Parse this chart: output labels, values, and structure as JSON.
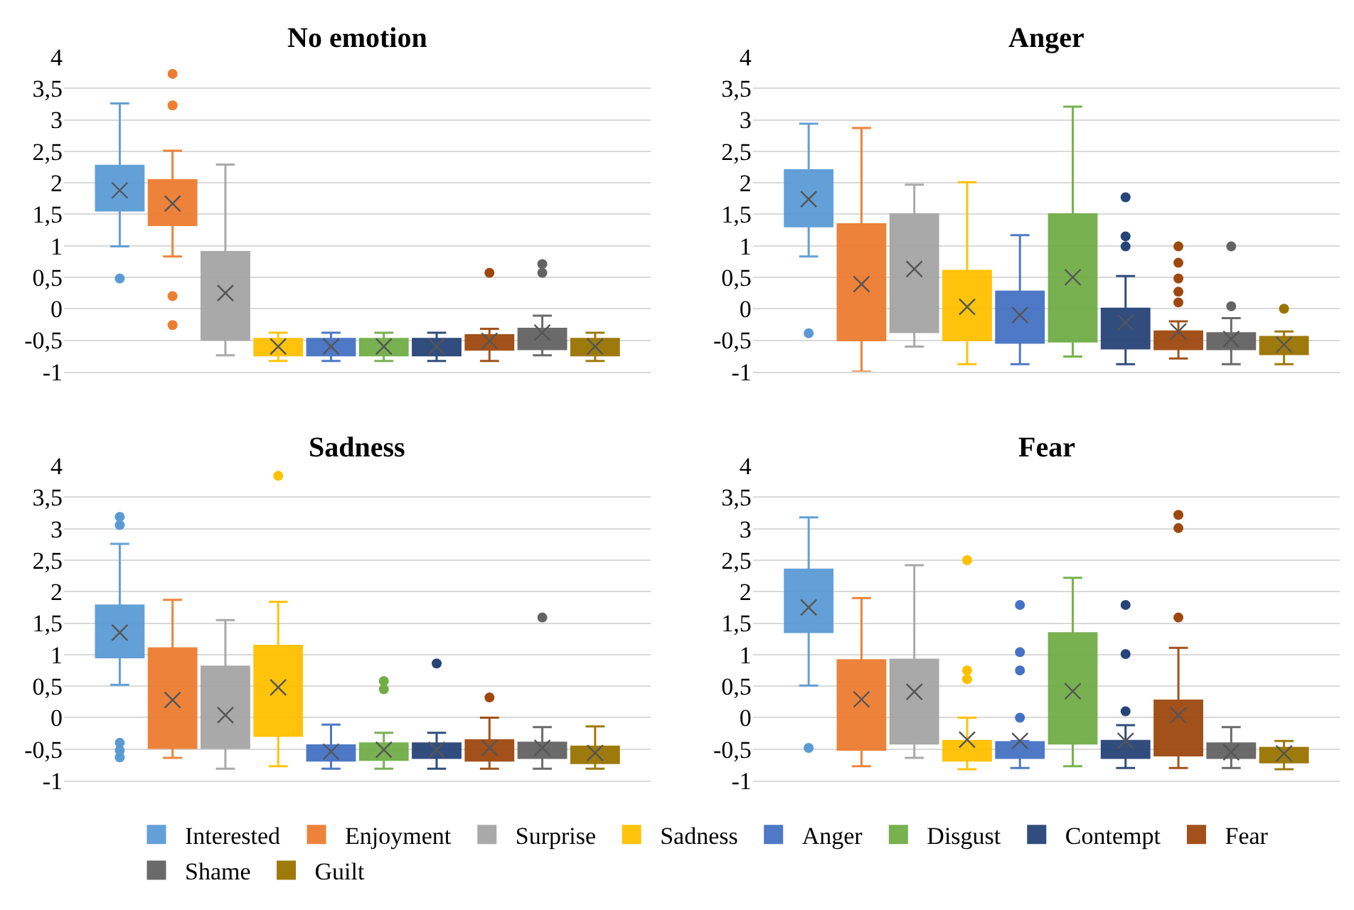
{
  "chart_data": [
    {
      "type": "box",
      "title": "No emotion",
      "categories": [
        null
      ],
      "ylim": [
        -1,
        4
      ],
      "yticks": [
        -1,
        {
          "value": -0.5,
          "label": "-0,5"
        },
        0,
        {
          "value": 0.5,
          "label": "0,5"
        },
        1,
        {
          "value": 1.5,
          "label": "1,5"
        },
        2,
        {
          "value": 2.5,
          "label": "2,5"
        },
        3,
        {
          "value": 3.5,
          "label": "3,5"
        },
        4
      ],
      "grid": "y",
      "legend": "bottom",
      "tick_labels": "y",
      "series": [
        {
          "name": "Interested",
          "color": "#5b9bd5",
          "boxes": [
            {
              "low": 0.99,
              "q1": 1.56,
              "median": 1.79,
              "q3": 2.27,
              "high": 3.26,
              "mean": 1.88,
              "outliers": [
                0.48
              ]
            }
          ]
        },
        {
          "name": "Enjoyment",
          "color": "#ed7d31",
          "boxes": [
            {
              "low": 0.83,
              "q1": 1.33,
              "median": 1.67,
              "q3": 2.04,
              "high": 2.51,
              "mean": 1.67,
              "outliers": [
                3.73,
                3.23,
                0.2,
                -0.26
              ]
            }
          ]
        },
        {
          "name": "Surprise",
          "color": "#a5a5a5",
          "boxes": [
            {
              "low": -0.74,
              "q1": -0.49,
              "median": -0.35,
              "q3": 0.9,
              "high": 2.29,
              "mean": 0.25
            }
          ]
        },
        {
          "name": "Sadness",
          "color": "#ffc000",
          "boxes": [
            {
              "low": -0.83,
              "q1": -0.74,
              "median": -0.62,
              "q3": -0.48,
              "high": -0.38,
              "mean": -0.6
            }
          ]
        },
        {
          "name": "Anger",
          "color": "#4472c4",
          "boxes": [
            {
              "low": -0.83,
              "q1": -0.74,
              "median": -0.62,
              "q3": -0.48,
              "high": -0.38,
              "mean": -0.6
            }
          ]
        },
        {
          "name": "Disgust",
          "color": "#70ad47",
          "boxes": [
            {
              "low": -0.83,
              "q1": -0.74,
              "median": -0.62,
              "q3": -0.48,
              "high": -0.38,
              "mean": -0.6
            }
          ]
        },
        {
          "name": "Contempt",
          "color": "#264478",
          "boxes": [
            {
              "low": -0.83,
              "q1": -0.74,
              "median": -0.62,
              "q3": -0.48,
              "high": -0.38,
              "mean": -0.6
            }
          ]
        },
        {
          "name": "Fear",
          "color": "#9e480e",
          "boxes": [
            {
              "low": -0.83,
              "q1": -0.65,
              "median": -0.52,
              "q3": -0.42,
              "high": -0.32,
              "mean": -0.51,
              "outliers": [
                0.57
              ]
            }
          ]
        },
        {
          "name": "Shame",
          "color": "#636363",
          "boxes": [
            {
              "low": -0.74,
              "q1": -0.64,
              "median": -0.45,
              "q3": -0.32,
              "high": -0.11,
              "mean": -0.38,
              "outliers": [
                0.71,
                0.57
              ]
            }
          ]
        },
        {
          "name": "Guilt",
          "color": "#997300",
          "boxes": [
            {
              "low": -0.83,
              "q1": -0.74,
              "median": -0.62,
              "q3": -0.48,
              "high": -0.38,
              "mean": -0.6
            }
          ]
        }
      ]
    },
    {
      "type": "box",
      "title": "Anger",
      "categories": [
        null
      ],
      "ylim": [
        -1,
        4
      ],
      "yticks": [
        -1,
        {
          "value": -0.5,
          "label": "-0,5"
        },
        0,
        {
          "value": 0.5,
          "label": "0,5"
        },
        1,
        {
          "value": 1.5,
          "label": "1,5"
        },
        2,
        {
          "value": 2.5,
          "label": "2,5"
        },
        3,
        {
          "value": 3.5,
          "label": "3,5"
        },
        4
      ],
      "grid": "y",
      "tick_labels": "y",
      "series": [
        {
          "color": "#5b9bd5",
          "boxes": [
            {
              "low": 0.83,
              "q1": 1.31,
              "median": 1.71,
              "q3": 2.2,
              "high": 2.94,
              "mean": 1.74,
              "outliers": [
                -0.39
              ]
            }
          ]
        },
        {
          "color": "#ed7d31",
          "boxes": [
            {
              "low": -1.0,
              "q1": -0.5,
              "median": 0.17,
              "q3": 1.34,
              "high": 2.87,
              "mean": 0.39
            }
          ]
        },
        {
          "color": "#a5a5a5",
          "boxes": [
            {
              "low": -0.6,
              "q1": -0.37,
              "median": 0.76,
              "q3": 1.5,
              "high": 1.97,
              "mean": 0.63
            }
          ]
        },
        {
          "color": "#ffc000",
          "boxes": [
            {
              "low": -0.88,
              "q1": -0.5,
              "median": -0.34,
              "q3": 0.6,
              "high": 2.01,
              "mean": 0.03
            }
          ]
        },
        {
          "color": "#4472c4",
          "boxes": [
            {
              "low": -0.88,
              "q1": -0.54,
              "median": -0.29,
              "q3": 0.27,
              "high": 1.17,
              "mean": -0.1
            }
          ]
        },
        {
          "color": "#70ad47",
          "boxes": [
            {
              "low": -0.76,
              "q1": -0.52,
              "median": -0.1,
              "q3": 1.5,
              "high": 3.21,
              "mean": 0.5
            }
          ]
        },
        {
          "color": "#264478",
          "boxes": [
            {
              "low": -0.88,
              "q1": -0.63,
              "median": -0.4,
              "q3": 0,
              "high": 0.52,
              "mean": -0.22,
              "outliers": [
                1.77,
                1.15,
                0.99
              ]
            }
          ]
        },
        {
          "color": "#9e480e",
          "boxes": [
            {
              "low": -0.79,
              "q1": -0.64,
              "median": -0.5,
              "q3": -0.36,
              "high": -0.2,
              "mean": -0.36,
              "outliers": [
                0.99,
                0.73,
                0.48,
                0.27,
                0.1
              ]
            }
          ]
        },
        {
          "color": "#636363",
          "boxes": [
            {
              "low": -0.88,
              "q1": -0.64,
              "median": -0.51,
              "q3": -0.39,
              "high": -0.15,
              "mean": -0.48,
              "outliers": [
                0.99,
                0.04
              ]
            }
          ]
        },
        {
          "color": "#997300",
          "boxes": [
            {
              "low": -0.88,
              "q1": -0.72,
              "median": -0.6,
              "q3": -0.45,
              "high": -0.36,
              "mean": -0.57,
              "outliers": [
                0
              ]
            }
          ]
        }
      ]
    },
    {
      "type": "box",
      "title": "Sadness",
      "categories": [
        null
      ],
      "ylim": [
        -1,
        4
      ],
      "yticks": [
        -1,
        {
          "value": -0.5,
          "label": "-0,5"
        },
        0,
        {
          "value": 0.5,
          "label": "0,5"
        },
        1,
        {
          "value": 1.5,
          "label": "1,5"
        },
        2,
        {
          "value": 2.5,
          "label": "2,5"
        },
        3,
        {
          "value": 3.5,
          "label": "3,5"
        },
        4
      ],
      "grid": "y",
      "tick_labels": "y",
      "series": [
        {
          "color": "#5b9bd5",
          "boxes": [
            {
              "low": 0.52,
              "q1": 0.96,
              "median": 1.48,
              "q3": 1.78,
              "high": 2.76,
              "mean": 1.35,
              "outliers": [
                3.19,
                3.06,
                -0.4,
                -0.52,
                -0.63
              ]
            }
          ]
        },
        {
          "color": "#ed7d31",
          "boxes": [
            {
              "low": -0.64,
              "q1": -0.48,
              "median": -0.23,
              "q3": 1.1,
              "high": 1.87,
              "mean": 0.28
            }
          ]
        },
        {
          "color": "#a5a5a5",
          "boxes": [
            {
              "low": -0.81,
              "q1": -0.48,
              "median": -0.32,
              "q3": 0.81,
              "high": 1.55,
              "mean": 0.04
            }
          ]
        },
        {
          "color": "#ffc000",
          "boxes": [
            {
              "low": -0.77,
              "q1": -0.29,
              "median": 0.33,
              "q3": 1.14,
              "high": 1.84,
              "mean": 0.48,
              "outliers": [
                3.84
              ]
            }
          ]
        },
        {
          "color": "#4472c4",
          "boxes": [
            {
              "low": -0.81,
              "q1": -0.68,
              "median": -0.54,
              "q3": -0.44,
              "high": -0.11,
              "mean": -0.54
            }
          ]
        },
        {
          "color": "#70ad47",
          "boxes": [
            {
              "low": -0.81,
              "q1": -0.67,
              "median": -0.53,
              "q3": -0.41,
              "high": -0.24,
              "mean": -0.51,
              "outliers": [
                0.58,
                0.45
              ]
            }
          ]
        },
        {
          "color": "#264478",
          "boxes": [
            {
              "low": -0.81,
              "q1": -0.64,
              "median": -0.53,
              "q3": -0.41,
              "high": -0.24,
              "mean": -0.51,
              "outliers": [
                0.86
              ]
            }
          ]
        },
        {
          "color": "#9e480e",
          "boxes": [
            {
              "low": -0.81,
              "q1": -0.68,
              "median": -0.5,
              "q3": -0.36,
              "high": 0,
              "mean": -0.48,
              "outliers": [
                0.32
              ]
            }
          ]
        },
        {
          "color": "#636363",
          "boxes": [
            {
              "low": -0.81,
              "q1": -0.64,
              "median": -0.53,
              "q3": -0.4,
              "high": -0.15,
              "mean": -0.48,
              "outliers": [
                1.59
              ]
            }
          ]
        },
        {
          "color": "#997300",
          "boxes": [
            {
              "low": -0.81,
              "q1": -0.72,
              "median": -0.6,
              "q3": -0.46,
              "high": -0.14,
              "mean": -0.56
            }
          ]
        }
      ]
    },
    {
      "type": "box",
      "title": "Fear",
      "categories": [
        null
      ],
      "ylim": [
        -1,
        4
      ],
      "yticks": [
        -1,
        {
          "value": -0.5,
          "label": "-0,5"
        },
        0,
        {
          "value": 0.5,
          "label": "0,5"
        },
        1,
        {
          "value": 1.5,
          "label": "1,5"
        },
        2,
        {
          "value": 2.5,
          "label": "2,5"
        },
        3,
        {
          "value": 3.5,
          "label": "3,5"
        },
        4
      ],
      "grid": "y",
      "tick_labels": "y",
      "series": [
        {
          "color": "#5b9bd5",
          "boxes": [
            {
              "low": 0.51,
              "q1": 1.36,
              "median": 1.75,
              "q3": 2.35,
              "high": 3.18,
              "mean": 1.75,
              "outliers": [
                -0.48
              ]
            }
          ]
        },
        {
          "color": "#ed7d31",
          "boxes": [
            {
              "low": -0.77,
              "q1": -0.51,
              "median": 0.08,
              "q3": 0.91,
              "high": 1.9,
              "mean": 0.29
            }
          ]
        },
        {
          "color": "#a5a5a5",
          "boxes": [
            {
              "low": -0.64,
              "q1": -0.41,
              "median": 0.36,
              "q3": 0.92,
              "high": 2.42,
              "mean": 0.41
            }
          ]
        },
        {
          "color": "#ffc000",
          "boxes": [
            {
              "low": -0.82,
              "q1": -0.68,
              "median": -0.52,
              "q3": -0.37,
              "high": 0,
              "mean": -0.35,
              "outliers": [
                2.5,
                0.75,
                0.61
              ]
            }
          ]
        },
        {
          "color": "#4472c4",
          "boxes": [
            {
              "low": -0.8,
              "q1": -0.64,
              "median": -0.52,
              "q3": -0.39,
              "high": -0.37,
              "mean": -0.37,
              "outliers": [
                1.79,
                1.04,
                0.75,
                0
              ]
            }
          ]
        },
        {
          "color": "#70ad47",
          "boxes": [
            {
              "low": -0.77,
              "q1": -0.41,
              "median": 0.35,
              "q3": 1.34,
              "high": 2.22,
              "mean": 0.42
            }
          ]
        },
        {
          "color": "#264478",
          "boxes": [
            {
              "low": -0.8,
              "q1": -0.64,
              "median": -0.52,
              "q3": -0.37,
              "high": -0.12,
              "mean": -0.37,
              "outliers": [
                1.79,
                1.01,
                0.1
              ]
            }
          ]
        },
        {
          "color": "#9e480e",
          "boxes": [
            {
              "low": -0.8,
              "q1": -0.6,
              "median": -0.36,
              "q3": 0.27,
              "high": 1.11,
              "mean": 0.04,
              "outliers": [
                3.22,
                3.01,
                1.59
              ]
            }
          ]
        },
        {
          "color": "#636363",
          "boxes": [
            {
              "low": -0.8,
              "q1": -0.64,
              "median": -0.52,
              "q3": -0.41,
              "high": -0.15,
              "mean": -0.55
            }
          ]
        },
        {
          "color": "#997300",
          "boxes": [
            {
              "low": -0.82,
              "q1": -0.71,
              "median": -0.62,
              "q3": -0.48,
              "high": -0.37,
              "mean": -0.57
            }
          ]
        }
      ]
    }
  ]
}
